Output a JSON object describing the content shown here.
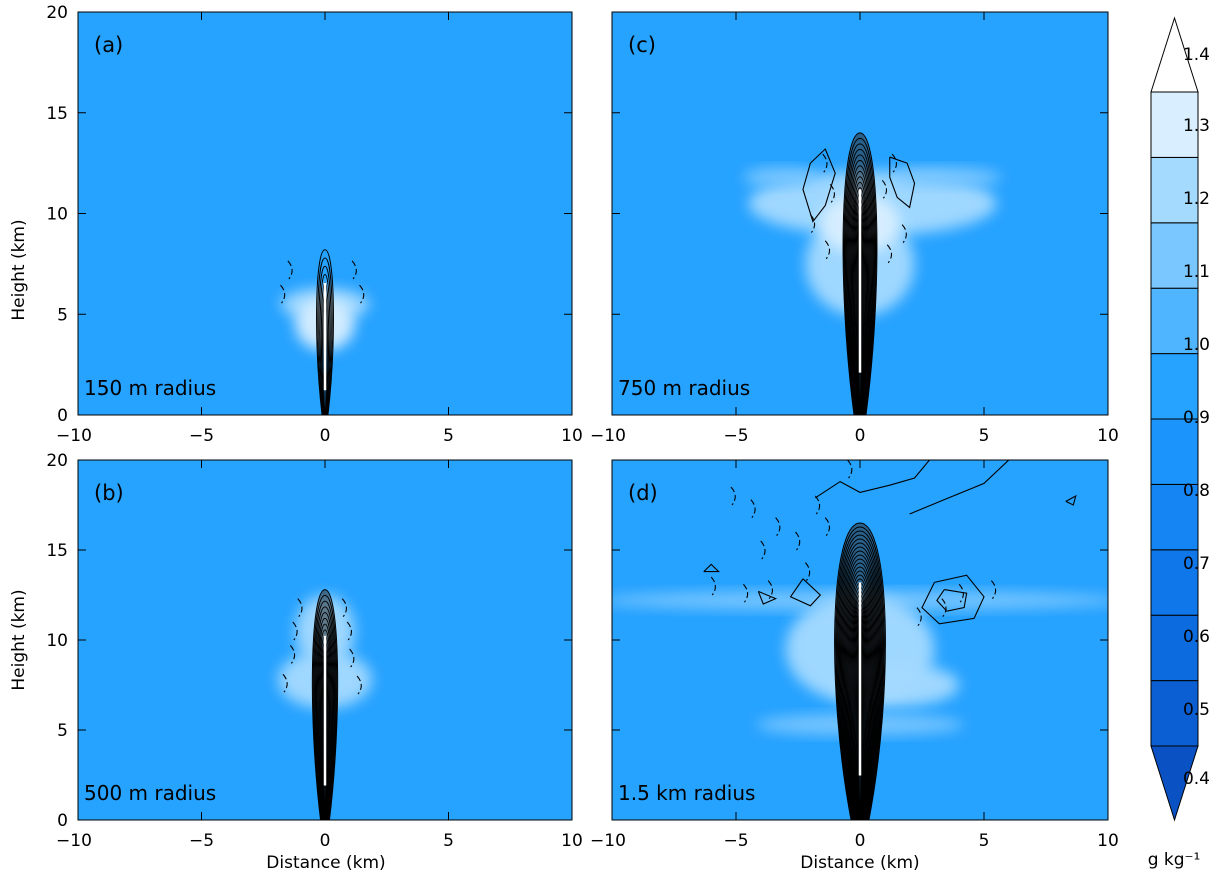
{
  "chart_data": {
    "type": "heatmap",
    "colorbar": {
      "levels": [
        0.4,
        0.5,
        0.6,
        0.7,
        0.8,
        0.9,
        1.0,
        1.1,
        1.2,
        1.3,
        1.4
      ],
      "tick_labels": [
        "0.4",
        "0.5",
        "0.6",
        "0.7",
        "0.8",
        "0.9",
        "1.0",
        "1.1",
        "1.2",
        "1.3",
        "1.4"
      ],
      "colors": [
        "#0b5fd2",
        "#0d6be0",
        "#1077ea",
        "#1585f3",
        "#1b94fb",
        "#26a2ff",
        "#50b5ff",
        "#7ac7ff",
        "#a5daff",
        "#d9efff"
      ],
      "below_color": "#0a52c4",
      "above_color": "#ffffff",
      "unit_label": "g kg⁻¹"
    },
    "panels": [
      {
        "id": "a",
        "tag": "(a)",
        "label": "150 m radius",
        "xlabel": "",
        "ylabel": "Height (km)",
        "xlim": [
          -10,
          10
        ],
        "ylim": [
          0,
          20
        ],
        "xticks": [
          "−10",
          "−5",
          "0",
          "5",
          "10"
        ],
        "yticks": [
          "0",
          "5",
          "10",
          "15",
          "20"
        ],
        "background_value": 0.9,
        "cloud": [
          {
            "cx": 0,
            "cy": 5.5,
            "rx": 1.8,
            "ry": 0.8,
            "value": 1.2
          },
          {
            "cx": 0,
            "cy": 4.5,
            "rx": 1.2,
            "ry": 1.3,
            "value": 1.3
          }
        ],
        "core": {
          "top_km": 8.2,
          "half_width_km": 0.4,
          "contour_count": 7
        },
        "dashed": [
          {
            "x": -1.3,
            "y": 7.2
          },
          {
            "x": 1.3,
            "y": 7.2
          },
          {
            "x": -1.6,
            "y": 6.0
          },
          {
            "x": 1.6,
            "y": 6.0
          }
        ]
      },
      {
        "id": "c",
        "tag": "(c)",
        "label": "750 m radius",
        "xlabel": "",
        "ylabel": "",
        "xlim": [
          -10,
          10
        ],
        "ylim": [
          0,
          20
        ],
        "xticks": [
          "−10",
          "−5",
          "0",
          "5",
          "10"
        ],
        "yticks": [],
        "background_value": 0.9,
        "cloud": [
          {
            "cx": 0.5,
            "cy": 10.5,
            "rx": 5.0,
            "ry": 1.6,
            "value": 1.2
          },
          {
            "cx": 0,
            "cy": 7.5,
            "rx": 2.2,
            "ry": 2.6,
            "value": 1.2
          },
          {
            "cx": 3.5,
            "cy": 11.8,
            "rx": 2.2,
            "ry": 0.5,
            "value": 1.1
          },
          {
            "cx": -3.2,
            "cy": 11.8,
            "rx": 1.5,
            "ry": 0.5,
            "value": 1.1
          },
          {
            "cx": 0,
            "cy": 9.5,
            "rx": 1.6,
            "ry": 1.5,
            "value": 1.3
          }
        ],
        "core": {
          "top_km": 14.0,
          "half_width_km": 0.8,
          "contour_count": 18
        },
        "dashed": [
          {
            "x": -1.3,
            "y": 12.5
          },
          {
            "x": 1.5,
            "y": 12.5
          },
          {
            "x": -1.8,
            "y": 9.5
          },
          {
            "x": 1.9,
            "y": 9.0
          },
          {
            "x": -1.2,
            "y": 8.2
          },
          {
            "x": 1.3,
            "y": 8.0
          },
          {
            "x": -1.0,
            "y": 11.0
          },
          {
            "x": 1.1,
            "y": 11.2
          }
        ],
        "solid_outer": [
          [
            [
              -2.0,
              12.5
            ],
            [
              -2.3,
              11.2
            ],
            [
              -1.9,
              9.6
            ],
            [
              -1.4,
              10.4
            ],
            [
              -1.0,
              12.0
            ],
            [
              -1.4,
              13.2
            ],
            [
              -2.0,
              12.5
            ]
          ],
          [
            [
              1.2,
              12.8
            ],
            [
              1.9,
              12.5
            ],
            [
              2.2,
              11.5
            ],
            [
              2.0,
              10.3
            ],
            [
              1.5,
              10.8
            ],
            [
              1.2,
              11.8
            ],
            [
              1.2,
              12.8
            ]
          ]
        ]
      },
      {
        "id": "b",
        "tag": "(b)",
        "label": "500 m radius",
        "xlabel": "Distance (km)",
        "ylabel": "Height (km)",
        "xlim": [
          -10,
          10
        ],
        "ylim": [
          0,
          20
        ],
        "xticks": [
          "−10",
          "−5",
          "0",
          "5",
          "10"
        ],
        "yticks": [
          "0",
          "5",
          "10",
          "15",
          "20"
        ],
        "background_value": 0.9,
        "cloud": [
          {
            "cx": 0,
            "cy": 7.8,
            "rx": 1.9,
            "ry": 1.6,
            "value": 1.2
          },
          {
            "cx": 0,
            "cy": 10.5,
            "rx": 1.2,
            "ry": 2.0,
            "value": 1.2
          }
        ],
        "core": {
          "top_km": 12.8,
          "half_width_km": 0.6,
          "contour_count": 14
        },
        "dashed": [
          {
            "x": -1.1,
            "y": 10.5
          },
          {
            "x": 1.1,
            "y": 10.5
          },
          {
            "x": -1.2,
            "y": 9.2
          },
          {
            "x": 1.2,
            "y": 9.0
          },
          {
            "x": -1.5,
            "y": 7.6
          },
          {
            "x": 1.5,
            "y": 7.5
          },
          {
            "x": -0.9,
            "y": 11.8
          },
          {
            "x": 0.9,
            "y": 11.8
          }
        ]
      },
      {
        "id": "d",
        "tag": "(d)",
        "label": "1.5 km radius",
        "xlabel": "Distance (km)",
        "ylabel": "",
        "xlim": [
          -10,
          10
        ],
        "ylim": [
          0,
          20
        ],
        "xticks": [
          "−10",
          "−5",
          "0",
          "5",
          "10"
        ],
        "yticks": [],
        "background_value": 0.9,
        "cloud": [
          {
            "cx": 0,
            "cy": 12.2,
            "rx": 10.5,
            "ry": 0.55,
            "value": 1.1
          },
          {
            "cx": 0,
            "cy": 9.5,
            "rx": 3.0,
            "ry": 3.0,
            "value": 1.2
          },
          {
            "cx": 0,
            "cy": 5.3,
            "rx": 4.2,
            "ry": 0.6,
            "value": 1.1
          },
          {
            "cx": 1.5,
            "cy": 7.5,
            "rx": 2.5,
            "ry": 1.2,
            "value": 1.2
          }
        ],
        "core": {
          "top_km": 16.5,
          "half_width_km": 1.2,
          "contour_count": 26
        },
        "dashed": [
          {
            "x": -5.0,
            "y": 18.0
          },
          {
            "x": -4.2,
            "y": 17.3
          },
          {
            "x": -3.2,
            "y": 16.3
          },
          {
            "x": -2.4,
            "y": 15.5
          },
          {
            "x": -3.8,
            "y": 15.0
          },
          {
            "x": -1.6,
            "y": 17.5
          },
          {
            "x": -1.2,
            "y": 16.3
          },
          {
            "x": -5.8,
            "y": 13.0
          },
          {
            "x": -4.5,
            "y": 12.6
          },
          {
            "x": -3.5,
            "y": 12.8
          },
          {
            "x": 2.5,
            "y": 11.3
          },
          {
            "x": 3.5,
            "y": 11.8
          },
          {
            "x": 4.2,
            "y": 12.6
          },
          {
            "x": 5.5,
            "y": 12.8
          },
          {
            "x": -0.3,
            "y": 19.5
          },
          {
            "x": -2.0,
            "y": 13.8
          }
        ],
        "solid_outer": [
          [
            [
              2.8,
              20.0
            ],
            [
              2.2,
              19.0
            ],
            [
              1.2,
              18.6
            ],
            [
              0.0,
              18.2
            ],
            [
              -0.8,
              18.8
            ],
            [
              -1.8,
              17.9
            ]
          ],
          [
            [
              6.0,
              20.0
            ],
            [
              5.0,
              18.7
            ],
            [
              3.4,
              17.8
            ],
            [
              2.0,
              17.0
            ]
          ],
          [
            [
              3.0,
              13.2
            ],
            [
              4.3,
              13.6
            ],
            [
              5.0,
              12.4
            ],
            [
              4.6,
              11.2
            ],
            [
              3.2,
              10.9
            ],
            [
              2.5,
              11.8
            ],
            [
              3.0,
              13.2
            ]
          ],
          [
            [
              3.4,
              12.8
            ],
            [
              4.3,
              12.6
            ],
            [
              4.2,
              11.8
            ],
            [
              3.5,
              11.6
            ],
            [
              3.1,
              12.2
            ],
            [
              3.4,
              12.8
            ]
          ],
          [
            [
              -2.3,
              13.4
            ],
            [
              -1.6,
              12.5
            ],
            [
              -2.0,
              11.9
            ],
            [
              -2.8,
              12.4
            ],
            [
              -2.3,
              13.4
            ]
          ],
          [
            [
              -4.1,
              12.7
            ],
            [
              -3.4,
              12.3
            ],
            [
              -3.9,
              12.0
            ],
            [
              -4.1,
              12.7
            ]
          ],
          [
            [
              8.3,
              17.7
            ],
            [
              8.7,
              18.0
            ],
            [
              8.6,
              17.5
            ],
            [
              8.3,
              17.7
            ]
          ],
          [
            [
              -6.3,
              13.8
            ],
            [
              -6.0,
              14.2
            ],
            [
              -5.7,
              13.8
            ],
            [
              -6.3,
              13.8
            ]
          ]
        ]
      }
    ]
  }
}
